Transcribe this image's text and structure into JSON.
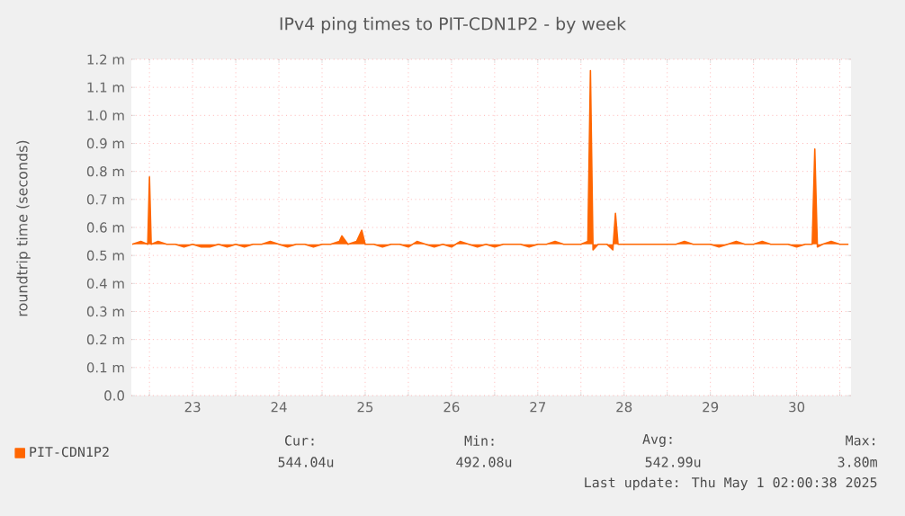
{
  "chart_data": {
    "type": "line",
    "title": "IPv4 ping times to PIT-CDN1P2 - by week",
    "ylabel": "roundtrip time (seconds)",
    "series": [
      {
        "name": "PIT-CDN1P2",
        "color": "#ff6600",
        "x": [
          22.8,
          22.9,
          22.98,
          23.0,
          23.02,
          23.1,
          23.2,
          23.3,
          23.4,
          23.5,
          23.6,
          23.7,
          23.8,
          23.9,
          24.0,
          24.1,
          24.2,
          24.3,
          24.4,
          24.5,
          24.6,
          24.7,
          24.8,
          24.9,
          25.0,
          25.1,
          25.2,
          25.23,
          25.3,
          25.4,
          25.46,
          25.5,
          25.6,
          25.7,
          25.8,
          25.9,
          26.0,
          26.1,
          26.2,
          26.3,
          26.4,
          26.5,
          26.6,
          26.7,
          26.8,
          26.9,
          27.0,
          27.1,
          27.2,
          27.3,
          27.4,
          27.5,
          27.6,
          27.7,
          27.8,
          27.9,
          28.0,
          28.08,
          28.11,
          28.14,
          28.2,
          28.3,
          28.37,
          28.4,
          28.43,
          28.5,
          28.6,
          28.7,
          28.8,
          28.9,
          29.0,
          29.1,
          29.2,
          29.3,
          29.4,
          29.5,
          29.6,
          29.7,
          29.8,
          29.9,
          30.0,
          30.1,
          30.2,
          30.3,
          30.4,
          30.5,
          30.6,
          30.68,
          30.71,
          30.74,
          30.8,
          30.9,
          31.0,
          31.1
        ],
        "values": [
          0.54,
          0.55,
          0.54,
          0.78,
          0.54,
          0.55,
          0.54,
          0.54,
          0.53,
          0.54,
          0.53,
          0.53,
          0.54,
          0.53,
          0.54,
          0.53,
          0.54,
          0.54,
          0.55,
          0.54,
          0.53,
          0.54,
          0.54,
          0.53,
          0.54,
          0.54,
          0.55,
          0.57,
          0.54,
          0.55,
          0.59,
          0.54,
          0.54,
          0.53,
          0.54,
          0.54,
          0.53,
          0.55,
          0.54,
          0.53,
          0.54,
          0.53,
          0.55,
          0.54,
          0.53,
          0.54,
          0.53,
          0.54,
          0.54,
          0.54,
          0.53,
          0.54,
          0.54,
          0.55,
          0.54,
          0.54,
          0.54,
          0.55,
          1.16,
          0.52,
          0.54,
          0.54,
          0.52,
          0.65,
          0.54,
          0.54,
          0.54,
          0.54,
          0.54,
          0.54,
          0.54,
          0.54,
          0.55,
          0.54,
          0.54,
          0.54,
          0.53,
          0.54,
          0.55,
          0.54,
          0.54,
          0.55,
          0.54,
          0.54,
          0.54,
          0.53,
          0.54,
          0.54,
          0.88,
          0.53,
          0.54,
          0.55,
          0.54,
          0.54
        ]
      }
    ],
    "xlim": [
      22.79,
      31.13
    ],
    "xticks": [
      {
        "value": 23,
        "label": null
      },
      {
        "value": 23.5,
        "label": "23"
      },
      {
        "value": 24,
        "label": null
      },
      {
        "value": 24.5,
        "label": "24"
      },
      {
        "value": 25,
        "label": null
      },
      {
        "value": 25.5,
        "label": "25"
      },
      {
        "value": 26,
        "label": null
      },
      {
        "value": 26.5,
        "label": "26"
      },
      {
        "value": 27,
        "label": null
      },
      {
        "value": 27.5,
        "label": "27"
      },
      {
        "value": 28,
        "label": null
      },
      {
        "value": 28.5,
        "label": "28"
      },
      {
        "value": 29,
        "label": null
      },
      {
        "value": 29.5,
        "label": "29"
      },
      {
        "value": 30,
        "label": null
      },
      {
        "value": 30.5,
        "label": "30"
      },
      {
        "value": 31,
        "label": null
      }
    ],
    "ylim": [
      0,
      1.2
    ],
    "yticks": [
      {
        "value": 0,
        "label": "0.0"
      },
      {
        "value": 0.1,
        "label": "0.1 m"
      },
      {
        "value": 0.2,
        "label": "0.2 m"
      },
      {
        "value": 0.3,
        "label": "0.3 m"
      },
      {
        "value": 0.4,
        "label": "0.4 m"
      },
      {
        "value": 0.5,
        "label": "0.5 m"
      },
      {
        "value": 0.6,
        "label": "0.6 m"
      },
      {
        "value": 0.7,
        "label": "0.7 m"
      },
      {
        "value": 0.8,
        "label": "0.8 m"
      },
      {
        "value": 0.9,
        "label": "0.9 m"
      },
      {
        "value": 1.0,
        "label": "1.0 m"
      },
      {
        "value": 1.1,
        "label": "1.1 m"
      },
      {
        "value": 1.2,
        "label": "1.2 m"
      }
    ],
    "grid": true,
    "legend": "bottom left",
    "marker": "none",
    "line_style": "solid",
    "annotations": [
      "Cur:",
      "Min:",
      "Avg:",
      "Max:",
      "544.04u",
      "492.08u",
      "542.99u",
      "3.80m",
      "Last update: Thu May  1 02:00:38 2025"
    ]
  }
}
